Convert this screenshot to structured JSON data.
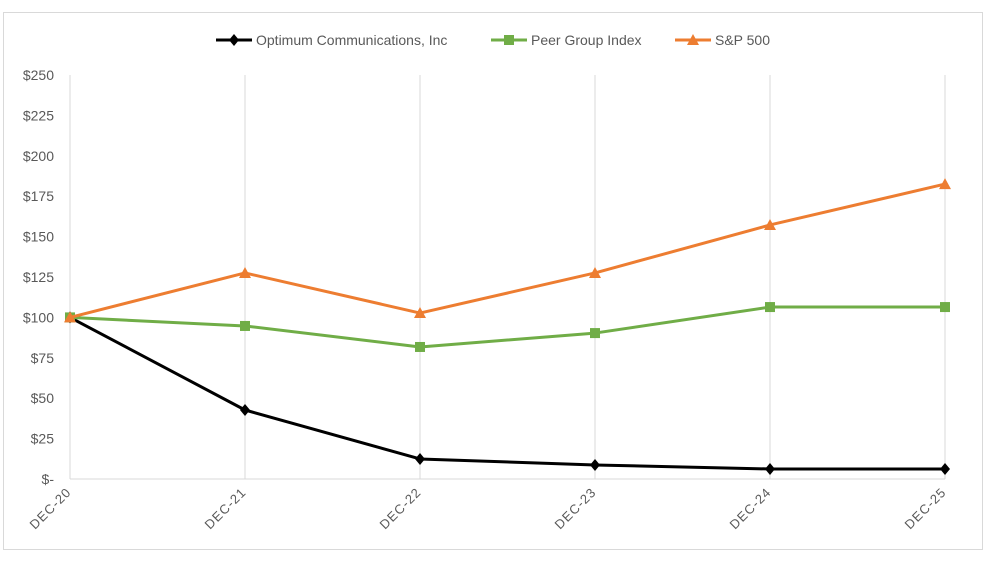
{
  "chart_data": {
    "type": "line",
    "categories": [
      "DEC-20",
      "DEC-21",
      "DEC-22",
      "DEC-23",
      "DEC-24",
      "DEC-25"
    ],
    "ylim": [
      0,
      250
    ],
    "yticks": [
      0,
      25,
      50,
      75,
      100,
      125,
      150,
      175,
      200,
      225,
      250
    ],
    "ytick_labels": [
      "$-",
      "$25",
      "$50",
      "$75",
      "$100",
      "$125",
      "$150",
      "$175",
      "$200",
      "$225",
      "$250"
    ],
    "grid": "vertical",
    "legend_position": "top",
    "series": [
      {
        "name": "Optimum Communications, Inc",
        "color": "#000000",
        "marker": "diamond",
        "values": [
          100,
          42.7,
          12.4,
          8.7,
          6.2,
          6.2
        ]
      },
      {
        "name": "Peer Group Index",
        "color": "#70ad47",
        "marker": "square",
        "values": [
          100,
          94.7,
          81.7,
          90.3,
          106.4,
          106.4
        ]
      },
      {
        "name": "S&P 500",
        "color": "#ed7d31",
        "marker": "triangle",
        "values": [
          100,
          127.5,
          102.7,
          127.5,
          157.2,
          182.5
        ]
      }
    ]
  }
}
